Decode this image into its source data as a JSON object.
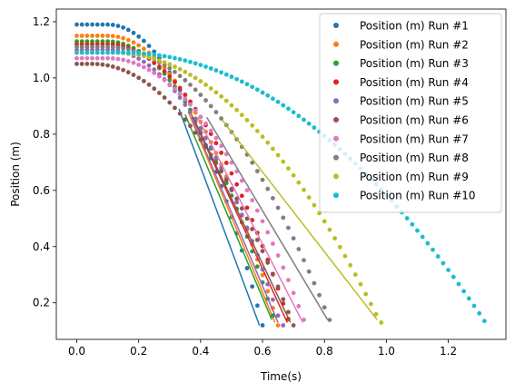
{
  "chart_data": {
    "type": "scatter",
    "title": "",
    "xlabel": "Time(s)",
    "ylabel": "Position (m)",
    "xlim": [
      -0.066,
      1.386
    ],
    "ylim": [
      0.07,
      1.245
    ],
    "xticks": [
      0.0,
      0.2,
      0.4,
      0.6,
      0.8,
      1.0,
      1.2
    ],
    "xtick_labels": [
      "0.0",
      "0.2",
      "0.4",
      "0.6",
      "0.8",
      "1.0",
      "1.2"
    ],
    "yticks": [
      0.2,
      0.4,
      0.6,
      0.8,
      1.0,
      1.2
    ],
    "ytick_labels": [
      "0.2",
      "0.4",
      "0.6",
      "0.8",
      "1.0",
      "1.2"
    ],
    "grid": false,
    "legend_position": "top-right",
    "series": [
      {
        "name": "Position (m) Run #1",
        "color": "#1f77b4",
        "y0": 1.19,
        "t_start_fall": 0.1,
        "t_end": 0.6,
        "y_end": 0.12,
        "fit_start": [
          0.33,
          0.89
        ],
        "fit_end": [
          0.59,
          0.12
        ]
      },
      {
        "name": "Position (m) Run #2",
        "color": "#ff7f0e",
        "y0": 1.15,
        "t_start_fall": 0.1,
        "t_end": 0.65,
        "y_end": 0.12,
        "fit_start": [
          0.36,
          0.88
        ],
        "fit_end": [
          0.64,
          0.13
        ]
      },
      {
        "name": "Position (m) Run #3",
        "color": "#2ca02c",
        "y0": 1.13,
        "t_start_fall": 0.1,
        "t_end": 0.64,
        "y_end": 0.13,
        "fit_start": [
          0.35,
          0.87
        ],
        "fit_end": [
          0.63,
          0.14
        ]
      },
      {
        "name": "Position (m) Run #4",
        "color": "#d62728",
        "y0": 1.12,
        "t_start_fall": 0.1,
        "t_end": 0.69,
        "y_end": 0.12,
        "fit_start": [
          0.37,
          0.87
        ],
        "fit_end": [
          0.68,
          0.13
        ]
      },
      {
        "name": "Position (m) Run #5",
        "color": "#9467bd",
        "y0": 1.1,
        "t_start_fall": 0.1,
        "t_end": 0.66,
        "y_end": 0.12,
        "fit_start": [
          0.37,
          0.86
        ],
        "fit_end": [
          0.65,
          0.13
        ]
      },
      {
        "name": "Position (m) Run #6",
        "color": "#8c564b",
        "y0": 1.05,
        "t_start_fall": 0.05,
        "t_end": 0.7,
        "y_end": 0.12,
        "fit_start": [
          0.38,
          0.85
        ],
        "fit_end": [
          0.69,
          0.13
        ]
      },
      {
        "name": "Position (m) Run #7",
        "color": "#e377c2",
        "y0": 1.07,
        "t_start_fall": 0.1,
        "t_end": 0.74,
        "y_end": 0.12,
        "fit_start": [
          0.39,
          0.86
        ],
        "fit_end": [
          0.73,
          0.13
        ]
      },
      {
        "name": "Position (m) Run #8",
        "color": "#7f7f7f",
        "y0": 1.11,
        "t_start_fall": 0.1,
        "t_end": 0.82,
        "y_end": 0.13,
        "fit_start": [
          0.42,
          0.86
        ],
        "fit_end": [
          0.81,
          0.14
        ]
      },
      {
        "name": "Position (m) Run #9",
        "color": "#bcbd22",
        "y0": 1.09,
        "t_start_fall": 0.12,
        "t_end": 0.98,
        "y_end": 0.13,
        "fit_start": [
          0.47,
          0.85
        ],
        "fit_end": [
          0.97,
          0.14
        ]
      },
      {
        "name": "Position (m) Run #10",
        "color": "#17becf",
        "y0": 1.09,
        "t_start_fall": 0.15,
        "t_end": 1.32,
        "y_end": 0.13,
        "fit_start": null,
        "fit_end": null
      }
    ]
  }
}
